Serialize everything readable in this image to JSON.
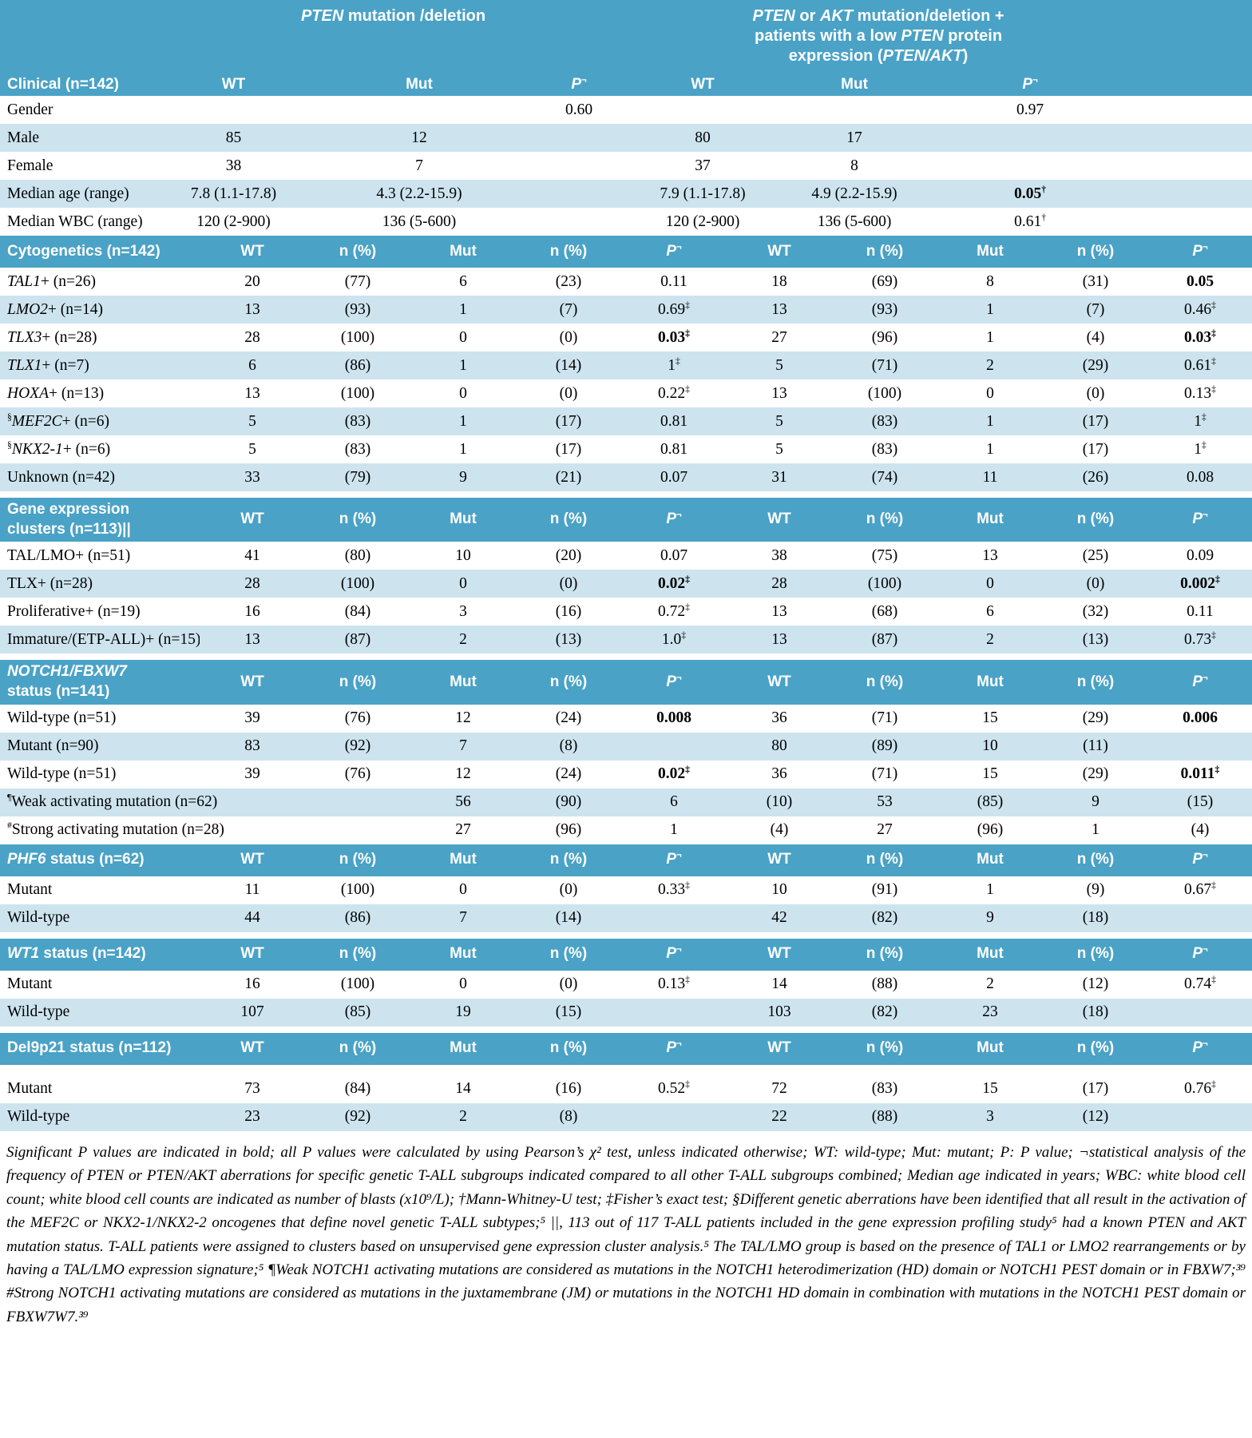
{
  "colors": {
    "header_bg": "#4aa2c6",
    "row_shaded": "#cde4ef",
    "page_bg": "#ffffff",
    "header_text": "#ffffff",
    "body_text": "#000000"
  },
  "group_headers": {
    "left": [
      {
        "t": "PTEN",
        "it": true
      },
      {
        "t": " mutation /deletion"
      }
    ],
    "right": [
      {
        "t": "PTEN",
        "it": true
      },
      {
        "t": " or "
      },
      {
        "t": "AKT",
        "it": true
      },
      {
        "t": " mutation/deletion + patients with a low "
      },
      {
        "t": "PTEN",
        "it": true
      },
      {
        "t": " protein expression ("
      },
      {
        "t": "PTEN/AKT",
        "it": true
      },
      {
        "t": ")"
      }
    ]
  },
  "clinical": {
    "title": "Clinical (n=142)",
    "columns": [
      {
        "t": "WT"
      },
      {
        "t": "Mut"
      },
      {
        "t": "P",
        "sup": "¬",
        "it": true
      },
      {
        "t": "WT"
      },
      {
        "t": "Mut"
      },
      {
        "t": "P",
        "sup": "¬",
        "it": true
      }
    ],
    "rows": [
      {
        "label": "Gender",
        "cells": [
          "",
          "",
          "0.60",
          "",
          "",
          "0.97"
        ],
        "shaded": false
      },
      {
        "label": "Male",
        "cells": [
          "85",
          "12",
          "",
          "80",
          "17",
          ""
        ],
        "shaded": true
      },
      {
        "label": "Female",
        "cells": [
          "38",
          "7",
          "",
          "37",
          "8",
          ""
        ],
        "shaded": false
      },
      {
        "label": "Median age (range)",
        "cells": [
          "7.8 (1.1-17.8)",
          "4.3 (2.2-15.9)",
          "",
          "7.9 (1.1-17.8)",
          "4.9 (2.2-15.9)",
          "0.05†"
        ],
        "bold": [
          5
        ],
        "shaded": true
      },
      {
        "label": "Median WBC (range)",
        "cells": [
          "120 (2-900)",
          "136 (5-600)",
          "",
          "120 (2-900)",
          "136 (5-600)",
          "0.61†"
        ],
        "shaded": false
      }
    ]
  },
  "section_columns": [
    {
      "t": "WT"
    },
    {
      "t": "n (%)"
    },
    {
      "t": "Mut"
    },
    {
      "t": "n (%)"
    },
    {
      "t": "P",
      "sup": "¬",
      "it": true
    },
    {
      "t": "WT"
    },
    {
      "t": "n (%)"
    },
    {
      "t": "Mut"
    },
    {
      "t": "n (%)"
    },
    {
      "t": "P",
      "sup": "¬",
      "it": true
    }
  ],
  "sections": [
    {
      "title": {
        "line1": {
          "text": "Cytogenetics (n=142)"
        }
      },
      "gap_before": false,
      "rows": [
        {
          "em": "TAL1",
          "label": "+ (n=26)",
          "cells": [
            "20",
            "(77)",
            "6",
            "(23)",
            "0.11",
            "18",
            "(69)",
            "8",
            "(31)",
            "0.05"
          ],
          "bold": [
            9
          ],
          "shaded": false
        },
        {
          "em": "LMO2",
          "label": "+ (n=14)",
          "cells": [
            "13",
            "(93)",
            "1",
            "(7)",
            "0.69‡",
            "13",
            "(93)",
            "1",
            "(7)",
            "0.46‡"
          ],
          "shaded": true
        },
        {
          "em": "TLX3",
          "label": "+ (n=28)",
          "cells": [
            "28",
            "(100)",
            "0",
            "(0)",
            "0.03‡",
            "27",
            "(96)",
            "1",
            "(4)",
            "0.03‡"
          ],
          "bold": [
            4,
            9
          ],
          "shaded": false
        },
        {
          "em": "TLX1",
          "label": "+ (n=7)",
          "cells": [
            "6",
            "(86)",
            "1",
            "(14)",
            "1‡",
            "5",
            "(71)",
            "2",
            "(29)",
            "0.61‡"
          ],
          "shaded": true
        },
        {
          "em": "HOXA",
          "label": "+ (n=13)",
          "cells": [
            "13",
            "(100)",
            "0",
            "(0)",
            "0.22‡",
            "13",
            "(100)",
            "0",
            "(0)",
            "0.13‡"
          ],
          "shaded": false
        },
        {
          "pre": "§",
          "em": "MEF2C",
          "label": "+ (n=6)",
          "cells": [
            "5",
            "(83)",
            "1",
            "(17)",
            "0.81",
            "5",
            "(83)",
            "1",
            "(17)",
            "1‡"
          ],
          "shaded": true
        },
        {
          "pre": "§",
          "em": "NKX2-1",
          "label": "+ (n=6)",
          "cells": [
            "5",
            "(83)",
            "1",
            "(17)",
            "0.81",
            "5",
            "(83)",
            "1",
            "(17)",
            "1‡"
          ],
          "shaded": false
        },
        {
          "label": "Unknown (n=42)",
          "cells": [
            "33",
            "(79)",
            "9",
            "(21)",
            "0.07",
            "31",
            "(74)",
            "11",
            "(26)",
            "0.08"
          ],
          "shaded": true
        }
      ]
    },
    {
      "title": {
        "line1": {
          "text": "Gene expression"
        },
        "line2": {
          "text": "clusters (n=113)||"
        }
      },
      "gap_before": true,
      "rows": [
        {
          "label": "TAL/LMO+ (n=51)",
          "cells": [
            "41",
            "(80)",
            "10",
            "(20)",
            "0.07",
            "38",
            "(75)",
            "13",
            "(25)",
            "0.09"
          ],
          "shaded": false
        },
        {
          "label": "TLX+ (n=28)",
          "cells": [
            "28",
            "(100)",
            "0",
            "(0)",
            "0.02‡",
            "28",
            "(100)",
            "0",
            "(0)",
            "0.002‡"
          ],
          "bold": [
            4,
            9
          ],
          "shaded": true
        },
        {
          "label": "Proliferative+ (n=19)",
          "cells": [
            "16",
            "(84)",
            "3",
            "(16)",
            "0.72‡",
            "13",
            "(68)",
            "6",
            "(32)",
            "0.11"
          ],
          "shaded": false
        },
        {
          "label": "Immature/(ETP-ALL)+ (n=15)",
          "cells": [
            "13",
            "(87)",
            "2",
            "(13)",
            "1.0‡",
            "13",
            "(87)",
            "2",
            "(13)",
            "0.73‡"
          ],
          "shaded": true
        }
      ]
    },
    {
      "title": {
        "line1": {
          "em": "NOTCH1/FBXW7"
        },
        "line2": {
          "text": "status (n=141)"
        }
      },
      "gap_before": true,
      "rows": [
        {
          "label": "Wild-type (n=51)",
          "cells": [
            "39",
            "(76)",
            "12",
            "(24)",
            "0.008",
            "36",
            "(71)",
            "15",
            "(29)",
            "0.006"
          ],
          "bold": [
            4,
            9
          ],
          "shaded": false
        },
        {
          "label": "Mutant (n=90)",
          "cells": [
            "83",
            "(92)",
            "7",
            "(8)",
            "",
            "80",
            "(89)",
            "10",
            "(11)",
            ""
          ],
          "shaded": true
        },
        {
          "label": "Wild-type (n=51)",
          "cells": [
            "39",
            "(76)",
            "12",
            "(24)",
            "0.02‡",
            "36",
            "(71)",
            "15",
            "(29)",
            "0.011‡"
          ],
          "bold": [
            4,
            9
          ],
          "shaded": false
        },
        {
          "pre": "¶",
          "label": "Weak activating mutation (n=62)",
          "span": 3,
          "cells": [
            "56",
            "(90)",
            "6",
            "(10)",
            "53",
            "(85)",
            "9",
            "(15)"
          ],
          "shaded": true
        },
        {
          "pre": "#",
          "label": "Strong activating mutation (n=28)",
          "span": 3,
          "cells": [
            "27",
            "(96)",
            "1",
            "(4)",
            "27",
            "(96)",
            "1",
            "(4)"
          ],
          "shaded": false
        }
      ]
    },
    {
      "title": {
        "line1": {
          "em": "PHF6",
          "text": " status (n=62)"
        }
      },
      "gap_before": false,
      "rows": [
        {
          "label": "Mutant",
          "cells": [
            "11",
            "(100)",
            "0",
            "(0)",
            "0.33‡",
            "10",
            "(91)",
            "1",
            "(9)",
            "0.67‡"
          ],
          "shaded": false
        },
        {
          "label": "Wild-type",
          "cells": [
            "44",
            "(86)",
            "7",
            "(14)",
            "",
            "42",
            "(82)",
            "9",
            "(18)",
            ""
          ],
          "shaded": true
        }
      ]
    },
    {
      "title": {
        "line1": {
          "em": "WT1",
          "text": " status (n=142)"
        }
      },
      "gap_before": true,
      "rows": [
        {
          "label": "Mutant",
          "cells": [
            "16",
            "(100)",
            "0",
            "(0)",
            "0.13‡",
            "14",
            "(88)",
            "2",
            "(12)",
            "0.74‡"
          ],
          "shaded": false
        },
        {
          "label": "Wild-type",
          "cells": [
            "107",
            "(85)",
            "19",
            "(15)",
            "",
            "103",
            "(82)",
            "23",
            "(18)",
            ""
          ],
          "shaded": true
        }
      ]
    },
    {
      "title": {
        "line1": {
          "text": "Del9p21 status (n=112)"
        }
      },
      "gap_before": true,
      "header_gap": true,
      "rows": [
        {
          "label": "Mutant",
          "cells": [
            "73",
            "(84)",
            "14",
            "(16)",
            "0.52‡",
            "72",
            "(83)",
            "15",
            "(17)",
            "0.76‡"
          ],
          "shaded": false
        },
        {
          "label": "Wild-type",
          "cells": [
            "23",
            "(92)",
            "2",
            "(8)",
            "",
            "22",
            "(88)",
            "3",
            "(12)",
            ""
          ],
          "shaded": true
        }
      ]
    }
  ],
  "footnote": {
    "text": "Significant P values are indicated in bold; all P values were calculated by using Pearson’s χ² test, unless indicated otherwise; WT: wild-type; Mut: mutant; P: P value; ¬statistical analysis of the frequency of PTEN or PTEN/AKT aberrations for specific genetic T-ALL subgroups indicated compared to all other T-ALL subgroups combined; Median age indicated in years; WBC: white blood cell count; white blood cell counts are indicated as number of blasts (x10⁹/L); †Mann-Whitney-U test; ‡Fisher’s exact test; §Different genetic aberrations have been identified that all result in the activation of the MEF2C or NKX2-1/NKX2-2 oncogenes that define novel genetic T-ALL subtypes;⁵ ||, 113 out of 117 T-ALL patients included in the gene expression profiling study⁵ had a known PTEN and AKT mutation status. T-ALL patients were assigned to clusters based on unsupervised gene expression cluster analysis.⁵ The TAL/LMO group is based on the presence of TAL1 or LMO2 rearrangements or by having a TAL/LMO expression signature;⁵ ¶Weak NOTCH1 activating mutations are considered as mutations in the NOTCH1 heterodimerization (HD) domain or NOTCH1 PEST domain or in FBXW7;³⁹ #Strong NOTCH1 activating mutations are considered as mutations in the juxtamembrane (JM) or mutations in the NOTCH1 HD domain in combination with mutations in the NOTCH1 PEST domain or FBXW7W7.³⁹"
  }
}
